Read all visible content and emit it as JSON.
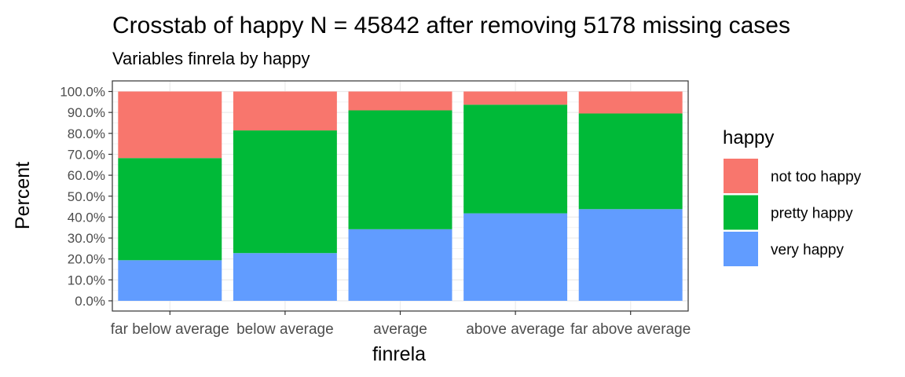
{
  "chart_data": {
    "type": "bar",
    "stacked": true,
    "title": "Crosstab of happy N = 45842 after removing 5178 missing cases",
    "subtitle": "Variables finrela by happy",
    "xlabel": "finrela",
    "ylabel": "Percent",
    "ylim": [
      0,
      100
    ],
    "y_ticks": [
      "0.0%",
      "10.0%",
      "20.0%",
      "30.0%",
      "40.0%",
      "50.0%",
      "60.0%",
      "70.0%",
      "80.0%",
      "90.0%",
      "100.0%"
    ],
    "grid": true,
    "legend_title": "happy",
    "legend_position": "right",
    "categories": [
      "far below average",
      "below average",
      "average",
      "above average",
      "far above average"
    ],
    "series": [
      {
        "name": "very happy",
        "color": "#619CFF",
        "values": [
          19.4,
          22.8,
          34.2,
          41.8,
          43.8
        ]
      },
      {
        "name": "pretty happy",
        "color": "#00BA38",
        "values": [
          48.8,
          58.6,
          56.8,
          51.9,
          45.7
        ]
      },
      {
        "name": "not too happy",
        "color": "#F8766D",
        "values": [
          31.8,
          18.6,
          9.0,
          6.3,
          10.5
        ]
      }
    ],
    "legend_order": [
      "not too happy",
      "pretty happy",
      "very happy"
    ]
  }
}
